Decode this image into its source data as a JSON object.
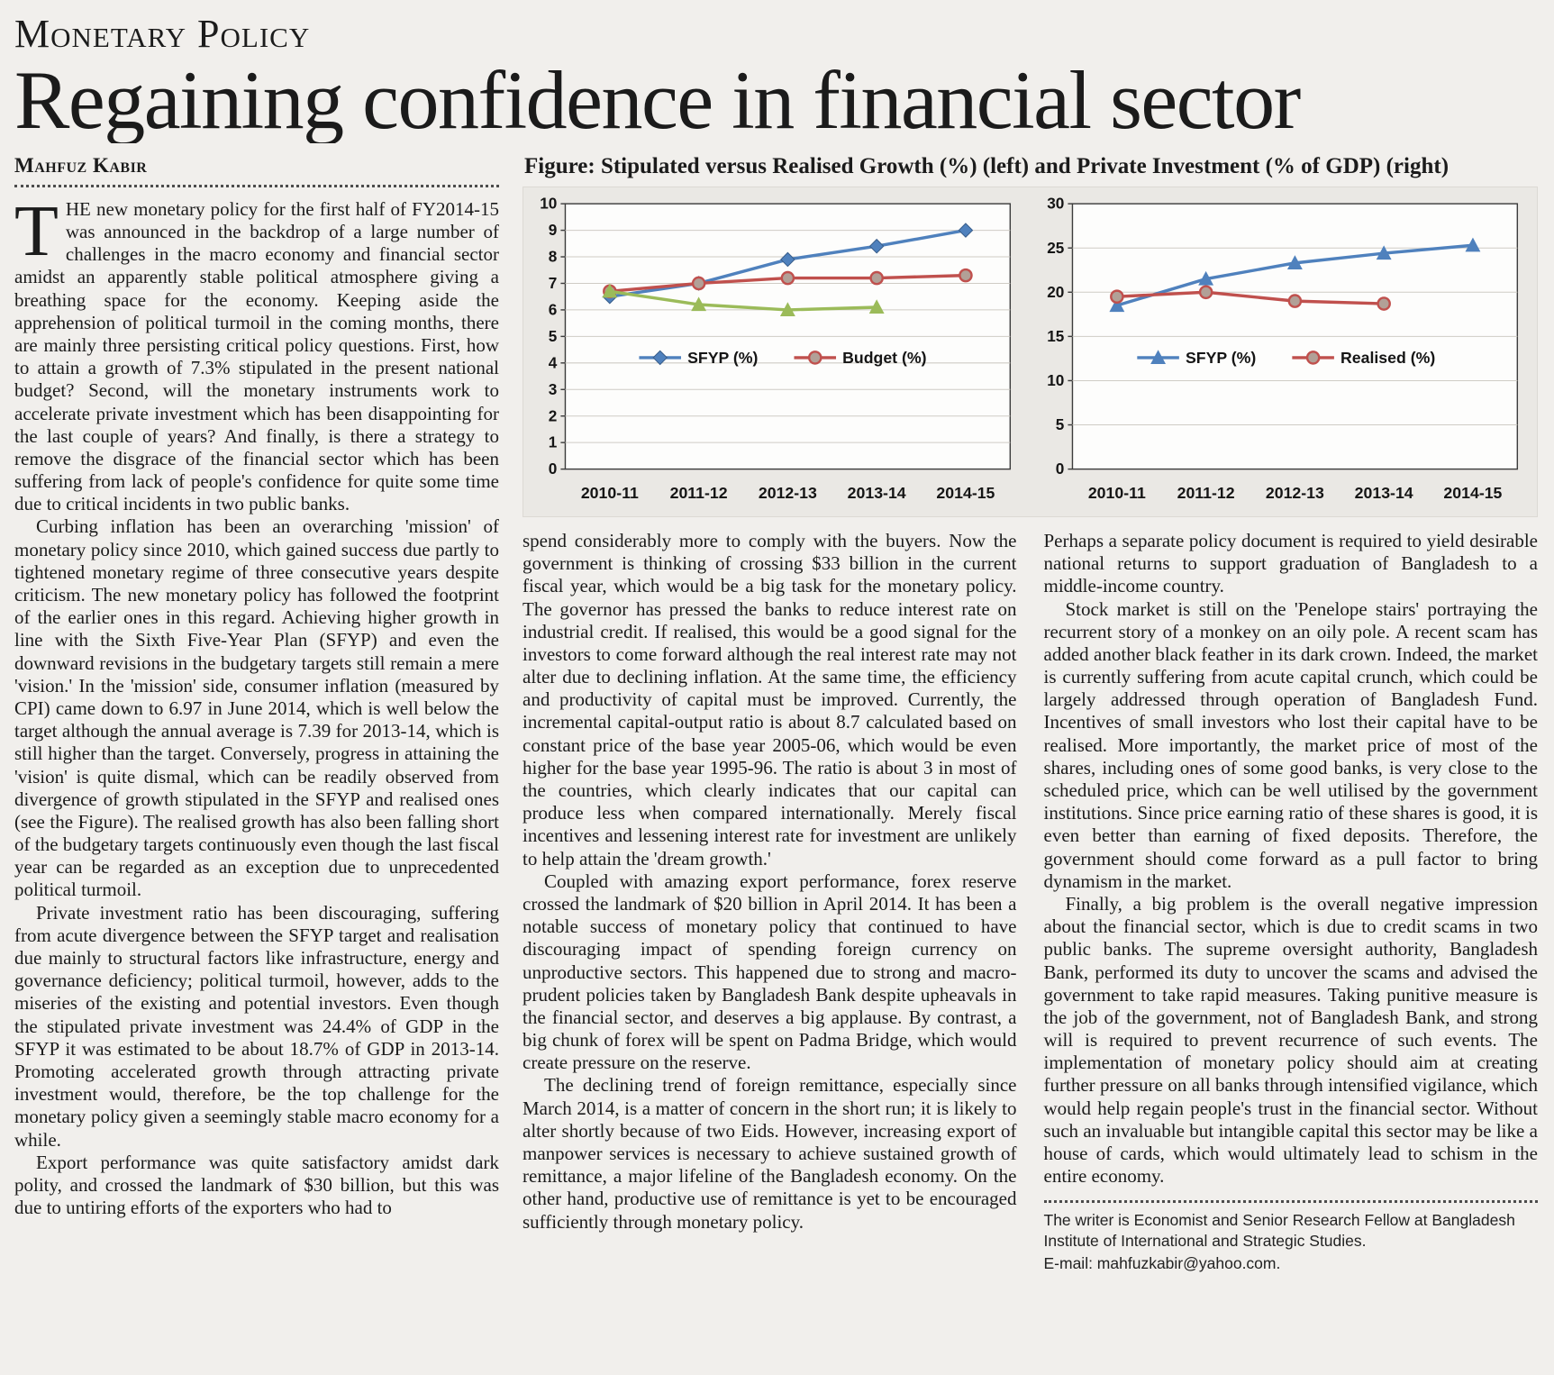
{
  "kicker": "Monetary Policy",
  "title": "Regaining confidence in financial sector",
  "byline": "Mahfuz Kabir",
  "figure": {
    "caption_label": "Figure:",
    "caption_text": " Stipulated versus Realised Growth (%) (left) and Private Investment (% of GDP) (right)"
  },
  "chart_data": [
    {
      "type": "line",
      "title": "Stipulated versus Realised Growth (%)",
      "categories": [
        "2010-11",
        "2011-12",
        "2012-13",
        "2013-14",
        "2014-15"
      ],
      "ylim": [
        0,
        10
      ],
      "ytick_step": 1,
      "grid": true,
      "legend_position": "inside-center",
      "series": [
        {
          "name": "SFYP (%)",
          "color": "#4F81BD",
          "marker": "diamond",
          "in_legend": true,
          "values": [
            6.5,
            7.0,
            7.9,
            8.4,
            9.0
          ]
        },
        {
          "name": "Budget (%)",
          "color": "#C0504D",
          "marker": "circle",
          "in_legend": true,
          "values": [
            6.7,
            7.0,
            7.2,
            7.2,
            7.3
          ]
        },
        {
          "name": "Realised (%)",
          "color": "#9BBB59",
          "marker": "triangle",
          "in_legend": false,
          "values": [
            6.7,
            6.2,
            6.0,
            6.1,
            null
          ]
        }
      ]
    },
    {
      "type": "line",
      "title": "Private Investment (% of GDP)",
      "categories": [
        "2010-11",
        "2011-12",
        "2012-13",
        "2013-14",
        "2014-15"
      ],
      "ylim": [
        0,
        30
      ],
      "ytick_step": 5,
      "grid": true,
      "legend_position": "inside-center",
      "series": [
        {
          "name": "SFYP (%)",
          "color": "#4F81BD",
          "marker": "triangle",
          "in_legend": true,
          "values": [
            18.5,
            21.5,
            23.3,
            24.4,
            25.3
          ]
        },
        {
          "name": "Realised (%)",
          "color": "#C0504D",
          "marker": "circle",
          "in_legend": true,
          "values": [
            19.5,
            20.0,
            19.0,
            18.7,
            null
          ]
        }
      ]
    }
  ],
  "article": {
    "col1": {
      "dropcap": "T",
      "p1": "HE new monetary policy for the first half of FY2014-15 was announced in the backdrop of a large number of challenges in the macro economy and financial sector amidst an apparently stable political atmosphere giving a breathing space for the economy. Keeping aside the apprehension of political turmoil in the coming months, there are mainly three persisting critical policy questions. First, how to attain a growth of 7.3% stipulated in the present national budget? Second, will the monetary instruments work to accelerate private investment which has been disappointing for the last couple of years? And finally, is there a strategy to remove the disgrace of the financial sector which has been suffering from lack of people's confidence for quite some time due to critical incidents in two public banks.",
      "p2": "Curbing inflation has been an overarching 'mission' of monetary policy since 2010, which gained success due partly to tightened monetary regime of three consecutive years despite criticism. The new monetary policy has followed the footprint of the earlier ones in this regard. Achieving higher growth in line with the Sixth Five-Year Plan (SFYP) and even the downward revisions in the budgetary targets still remain a mere 'vision.' In the 'mission' side, consumer inflation (measured by CPI) came down to 6.97 in June 2014, which is well below the target although the annual average is 7.39 for 2013-14, which is still higher than the target. Conversely, progress in attaining the 'vision' is quite dismal, which can be readily observed from divergence of growth stipulated in the SFYP and realised ones (see the Figure). The realised growth has also been falling short of the budgetary targets continuously even though the last fiscal year can be regarded as an exception due to unprecedented political turmoil.",
      "p3": "Private investment ratio has been discouraging, suffering from acute divergence between the SFYP target and realisation due mainly to structural factors like infrastructure, energy and governance deficiency; political turmoil, however, adds to the miseries of the existing and potential investors. Even though the stipulated private investment was 24.4% of GDP in the SFYP it was estimated to be about 18.7% of GDP in 2013-14. Promoting accelerated growth through attracting private investment would, therefore, be the top challenge for the monetary policy given a seemingly stable macro economy for a while.",
      "p4": "Export performance was quite satisfactory amidst dark polity, and crossed the landmark of $30 billion, but this was due to untiring efforts of the exporters who had to"
    },
    "col2": {
      "p1": "spend considerably more to comply with the buyers. Now the government is thinking of crossing $33 billion in the current fiscal year, which would be a big task for the monetary policy. The governor has pressed the banks to reduce interest rate on industrial credit. If realised, this would be a good signal for the investors to come forward although the real interest rate may not alter due to declining inflation. At the same time, the efficiency and productivity of capital must be improved. Currently, the incremental capital-output ratio is about 8.7 calculated based on constant price of the base year 2005-06, which would be even higher for the base year 1995-96. The ratio is about 3 in most of the countries, which clearly indicates that our capital can produce less when compared internationally. Merely fiscal incentives and lessening interest rate for investment are unlikely to help attain the 'dream growth.'",
      "p2": "Coupled with amazing export performance, forex reserve crossed the landmark of $20 billion in April 2014. It has been a notable success of monetary policy that continued to have discouraging impact of spending foreign currency on unproductive sectors. This happened due to strong and macro-prudent policies taken by Bangladesh Bank despite upheavals in the financial sector, and deserves a big applause. By contrast, a big chunk of forex will be spent on Padma Bridge, which would create pressure on the reserve.",
      "p3": "The declining trend of foreign remittance, especially since March 2014, is a matter of concern in the short run; it is likely to alter shortly because of two Eids. However, increasing export of manpower services is necessary to achieve sustained growth of remittance, a major lifeline of the Bangladesh economy. On the other hand, productive use of remittance is yet to be encouraged sufficiently through monetary policy."
    },
    "col3": {
      "p1": "Perhaps a separate policy document is required to yield desirable national returns to support graduation of Bangladesh to a middle-income country.",
      "p2": "Stock market is still on the 'Penelope stairs' portraying the recurrent story of a monkey on an oily pole. A recent scam has added another black feather in its dark crown. Indeed, the market is currently suffering from acute capital crunch, which could be largely addressed through operation of Bangladesh Fund. Incentives of small investors who lost their capital have to be realised. More importantly, the market price of most of the shares, including ones of some good banks, is very close to the scheduled price, which can be well utilised by the government institutions. Since price earning ratio of these shares is good, it is even better than earning of fixed deposits. Therefore, the government should come forward as a pull factor to bring dynamism in the market.",
      "p3": "Finally, a big problem is the overall negative impression about the financial sector, which is due to credit scams in two public banks. The supreme oversight authority, Bangladesh Bank, performed its duty to uncover the scams and advised the government to take rapid measures. Taking punitive measure is the job of the government, not of Bangladesh Bank, and strong will is required to prevent recurrence of such events. The implementation of monetary policy should aim at creating further pressure on all banks through intensified vigilance, which would help regain people's trust in the financial sector. Without such an invaluable but intangible capital this sector may be like a house of cards, which would ultimately lead to schism in the entire economy."
    }
  },
  "footer": {
    "line1": "The writer is Economist and Senior Research Fellow at Bangladesh Institute of International and Strategic Studies.",
    "line2": "E-mail: mahfuzkabir@yahoo.com."
  }
}
